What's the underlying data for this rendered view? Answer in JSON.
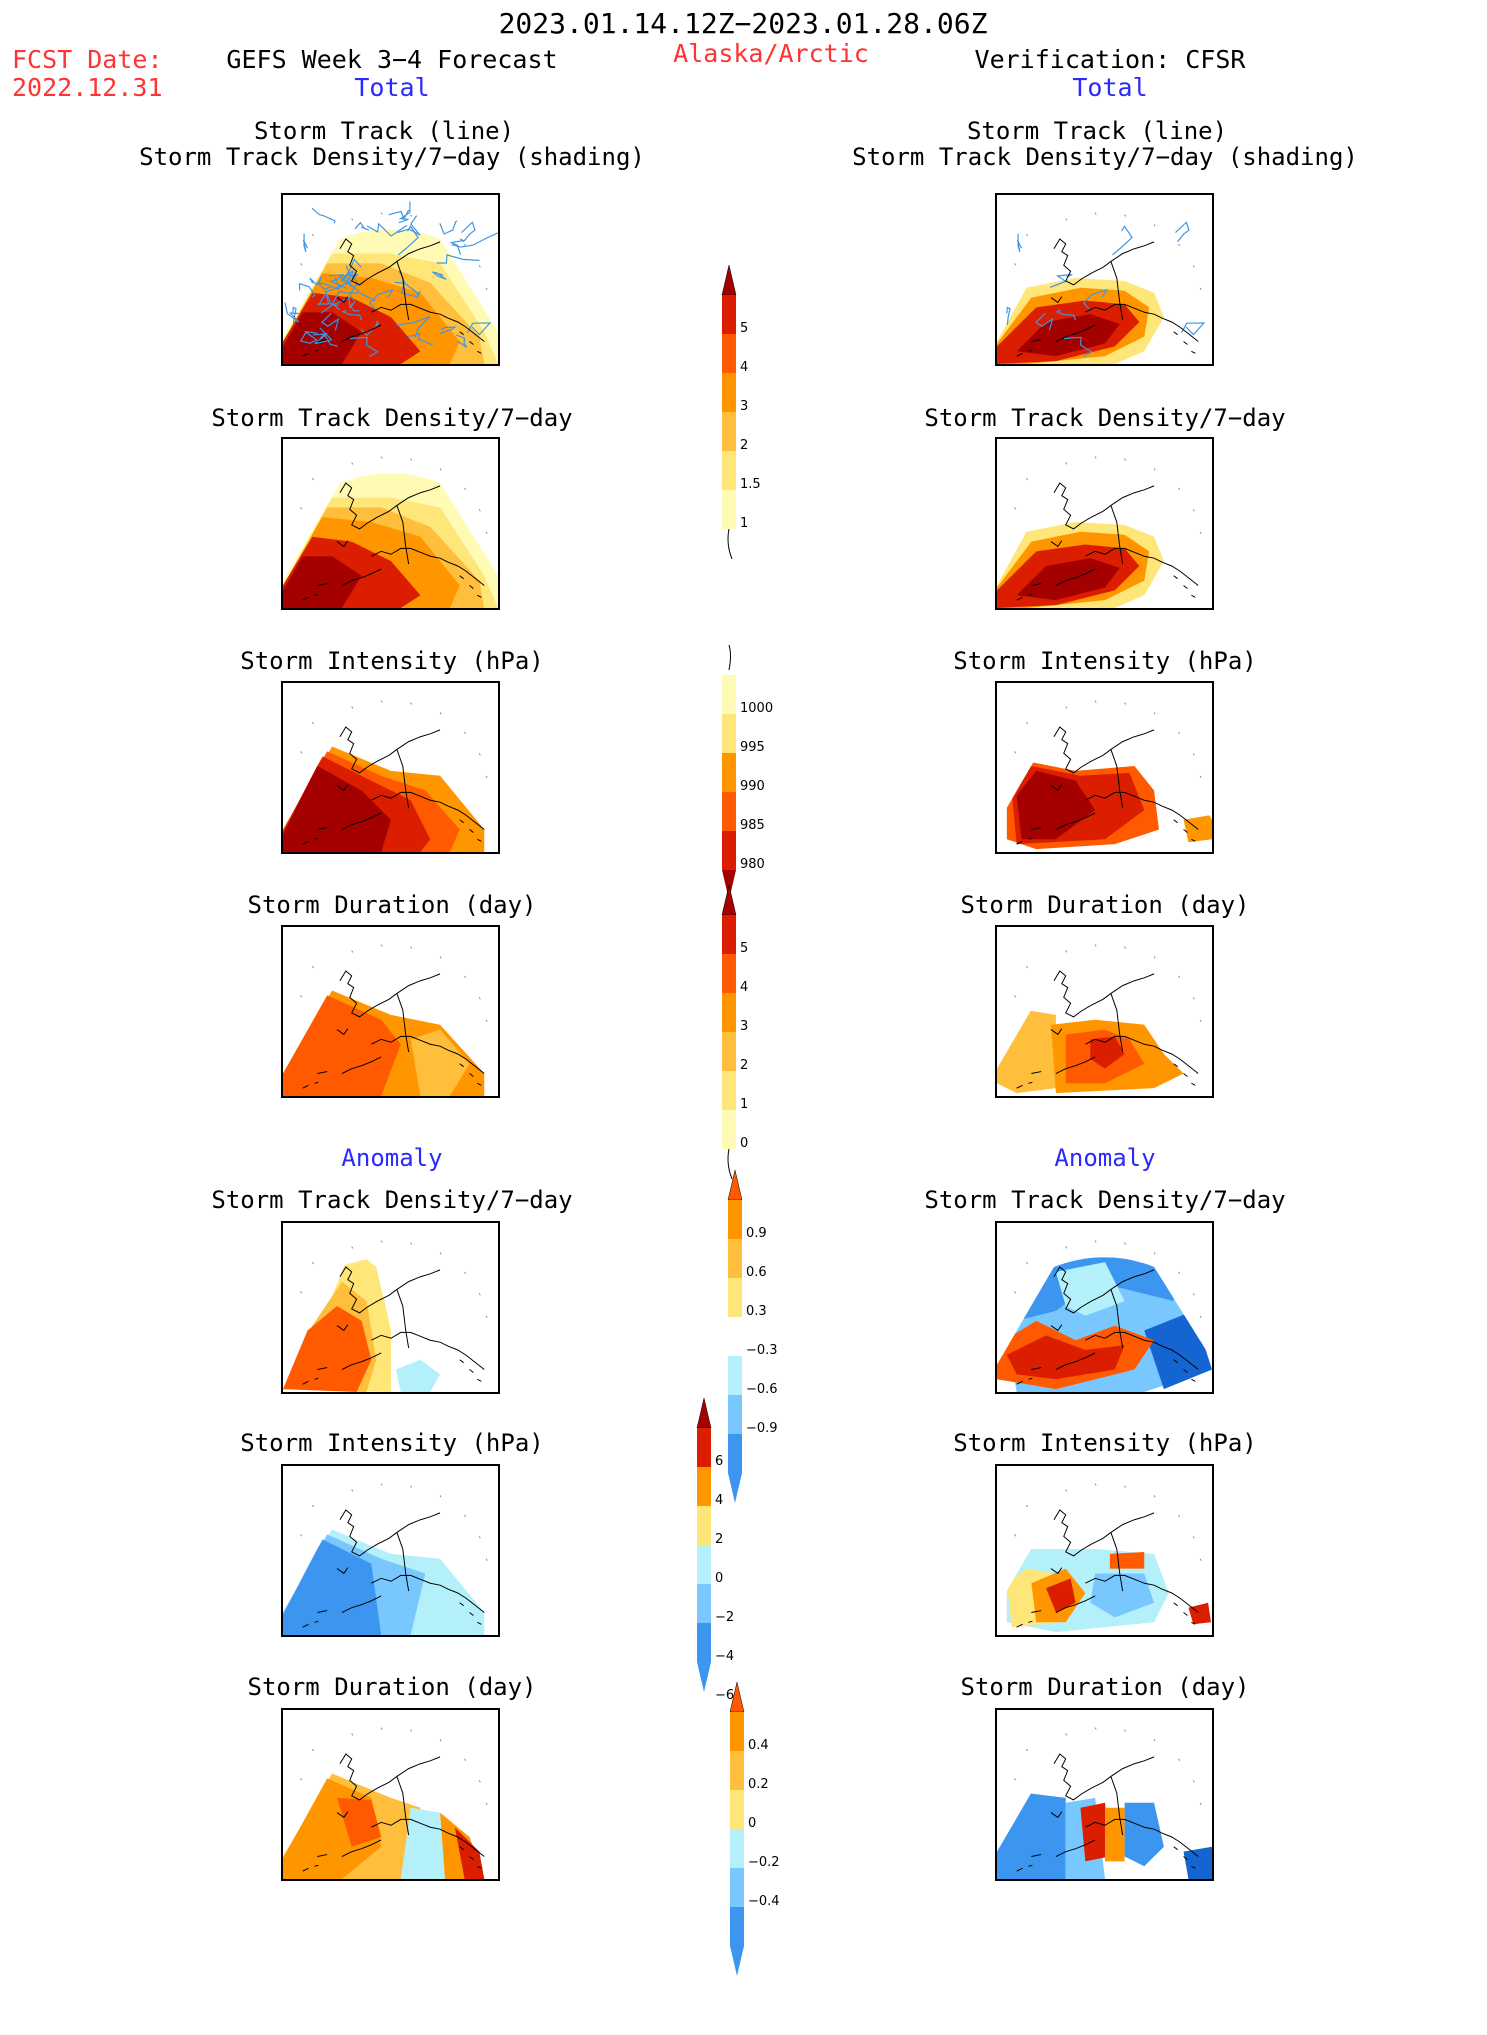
{
  "header": {
    "date_range": "2023.01.14.12Z−2023.01.28.06Z",
    "fcst_label": "FCST Date:",
    "fcst_date": "2022.12.31",
    "forecast_title": "GEFS Week 3−4 Forecast",
    "region": "Alaska/Arctic",
    "verification": "Verification: CFSR",
    "left_section": "Total",
    "right_section": "Total"
  },
  "panels": {
    "track_line": "Storm Track (line)",
    "track_shading": "Storm Track Density/7−day (shading)",
    "track_density": "Storm Track Density/7−day",
    "intensity": "Storm Intensity (hPa)",
    "duration": "Storm Duration (day)",
    "anomaly": "Anomaly"
  },
  "colorbars": {
    "density": [
      "5",
      "4",
      "3",
      "2",
      "1.5",
      "1"
    ],
    "intensity": [
      "1000",
      "995",
      "990",
      "985",
      "980"
    ],
    "duration": [
      "5",
      "4",
      "3",
      "2",
      "1",
      "0"
    ],
    "density_anom": [
      "0.9",
      "0.6",
      "0.3",
      "−0.3",
      "−0.6",
      "−0.9"
    ],
    "intensity_anom": [
      "6",
      "4",
      "2",
      "0",
      "−2",
      "−4",
      "−6"
    ],
    "duration_anom": [
      "0.4",
      "0.2",
      "0",
      "−0.2",
      "−0.4"
    ]
  },
  "colors": {
    "dark_red": "#a50000",
    "red": "#dc1e00",
    "orange_red": "#ff5a00",
    "orange": "#ff9600",
    "amber": "#ffbe3c",
    "yellow": "#ffe678",
    "pale_yellow": "#fffab4",
    "light_blue": "#b4f0fa",
    "sky_blue": "#78c8ff",
    "blue": "#3c96f0",
    "dark_blue": "#1464d2",
    "track_blue": "#3c96e6"
  }
}
